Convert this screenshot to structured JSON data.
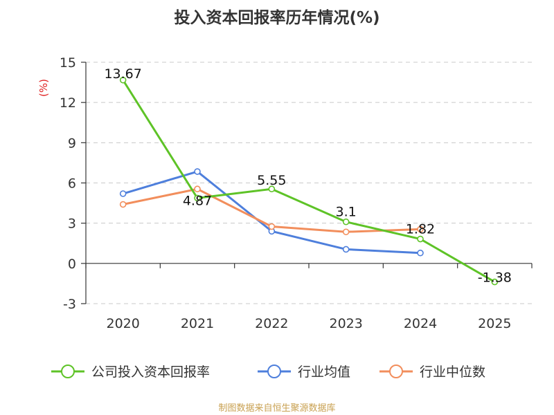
{
  "title": "投入资本回报率历年情况(%)",
  "footer": "制图数据来自恒生聚源数据库",
  "chart_data": {
    "type": "line",
    "title": "投入资本回报率历年情况(%)",
    "ylabel": "(%)",
    "xlabel": "",
    "categories": [
      "2020",
      "2021",
      "2022",
      "2023",
      "2024",
      "2025"
    ],
    "ylim": [
      -3,
      15
    ],
    "yticks": [
      -3,
      0,
      3,
      6,
      9,
      12,
      15
    ],
    "grid": true,
    "legend_position": "bottom",
    "series": [
      {
        "name": "公司投入资本回报率",
        "color": "#5ec327",
        "values": [
          13.67,
          4.87,
          5.55,
          3.1,
          1.82,
          -1.38
        ],
        "labels": [
          "13.67",
          "4.87",
          "5.55",
          "3.1",
          "1.82",
          "-1.38"
        ]
      },
      {
        "name": "行业均值",
        "color": "#4e7fdc",
        "values": [
          5.2,
          6.85,
          2.4,
          1.05,
          0.78,
          null
        ]
      },
      {
        "name": "行业中位数",
        "color": "#f28e5c",
        "values": [
          4.4,
          5.55,
          2.75,
          2.35,
          2.55,
          null
        ]
      }
    ]
  }
}
